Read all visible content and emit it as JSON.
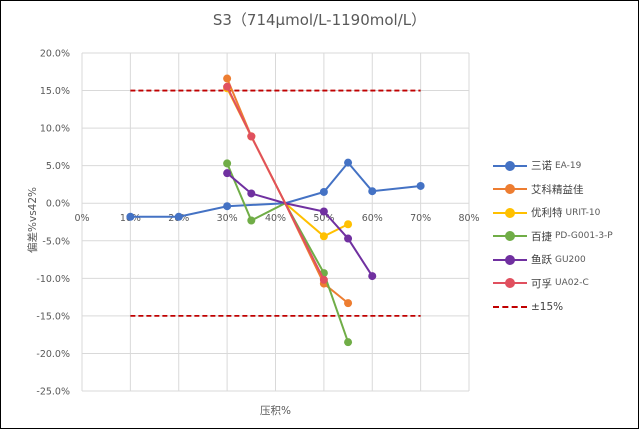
{
  "chart_data": {
    "type": "line",
    "title": "S3（714μmol/L-1190mol/L）",
    "xlabel": "压积%",
    "ylabel": "偏差%vs42%",
    "x_ticks": [
      "0%",
      "10%",
      "20%",
      "30%",
      "40%",
      "50%",
      "60%",
      "70%",
      "80%"
    ],
    "y_ticks": [
      "20.0%",
      "15.0%",
      "10.0%",
      "5.0%",
      "0.0%",
      "-5.0%",
      "-10.0%",
      "-15.0%",
      "-20.0%",
      "-25.0%"
    ],
    "xlim": [
      0,
      80
    ],
    "ylim": [
      -25,
      20
    ],
    "grid": true,
    "legend_position": "right",
    "series": [
      {
        "name": "三诺",
        "model": "EA-19",
        "color": "#4472c4",
        "points": [
          [
            10,
            -1.8
          ],
          [
            20,
            -1.8
          ],
          [
            30,
            -0.4
          ],
          [
            42,
            0
          ],
          [
            50,
            1.5
          ],
          [
            55,
            5.4
          ],
          [
            60,
            1.6
          ],
          [
            70,
            2.3
          ]
        ]
      },
      {
        "name": "艾科精益佳",
        "model": "",
        "color": "#ed7d31",
        "points": [
          [
            30,
            16.6
          ],
          [
            35,
            8.9
          ],
          [
            42,
            0
          ],
          [
            50,
            -10.7
          ],
          [
            55,
            -13.3
          ]
        ]
      },
      {
        "name": "优利特",
        "model": "URIT-10",
        "color": "#ffc000",
        "points": [
          [
            30,
            15.3
          ],
          [
            35,
            8.9
          ],
          [
            42,
            0
          ],
          [
            50,
            -4.4
          ],
          [
            55,
            -2.8
          ]
        ]
      },
      {
        "name": "百捷",
        "model": "PD-G001-3-P",
        "color": "#70ad47",
        "points": [
          [
            30,
            5.3
          ],
          [
            35,
            -2.3
          ],
          [
            42,
            0
          ],
          [
            50,
            -9.3
          ],
          [
            55,
            -18.5
          ]
        ]
      },
      {
        "name": "鱼跃",
        "model": "GU200",
        "color": "#7030a0",
        "points": [
          [
            30,
            4.0
          ],
          [
            35,
            1.3
          ],
          [
            42,
            0
          ],
          [
            50,
            -1.1
          ],
          [
            55,
            -4.7
          ],
          [
            60,
            -9.7
          ]
        ]
      },
      {
        "name": "可孚",
        "model": "UA02-C",
        "color": "#e0505f",
        "points": [
          [
            30,
            15.5
          ],
          [
            35,
            8.9
          ],
          [
            42,
            0
          ],
          [
            50,
            -10.2
          ]
        ]
      }
    ],
    "reference_lines": [
      {
        "name": "±15%",
        "color": "#c00000",
        "style": "dashed",
        "values": [
          15,
          -15
        ],
        "x_range": [
          10,
          70
        ]
      }
    ]
  },
  "legend": {
    "items": [
      {
        "name": "三诺",
        "model": "EA-19",
        "color": "#4472c4",
        "kind": "marker"
      },
      {
        "name": "艾科精益佳",
        "model": "",
        "color": "#ed7d31",
        "kind": "marker"
      },
      {
        "name": "优利特",
        "model": "URIT-10",
        "color": "#ffc000",
        "kind": "marker"
      },
      {
        "name": "百捷",
        "model": "PD-G001-3-P",
        "color": "#70ad47",
        "kind": "marker"
      },
      {
        "name": "鱼跃",
        "model": "GU200",
        "color": "#7030a0",
        "kind": "marker"
      },
      {
        "name": "可孚",
        "model": "UA02-C",
        "color": "#e0505f",
        "kind": "marker"
      },
      {
        "name": "±15%",
        "model": "",
        "color": "#c00000",
        "kind": "dash"
      }
    ]
  }
}
